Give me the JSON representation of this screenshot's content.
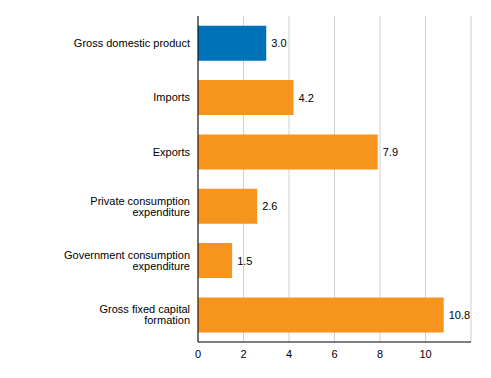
{
  "chart_data": {
    "type": "bar",
    "orientation": "horizontal",
    "categories": [
      "Gross domestic product",
      "Imports",
      "Exports",
      "Private consumption expenditure",
      "Government consumption expenditure",
      "Gross fixed capital formation"
    ],
    "values": [
      3.0,
      4.2,
      7.9,
      2.6,
      1.5,
      10.8
    ],
    "value_labels": [
      "3.0",
      "4.2",
      "7.9",
      "2.6",
      "1.5",
      "10.8"
    ],
    "colors": [
      "#0072b9",
      "#f7941d",
      "#f7941d",
      "#f7941d",
      "#f7941d",
      "#f7941d"
    ],
    "xlim": [
      0,
      12
    ],
    "xticks": [
      0,
      2,
      4,
      6,
      8,
      10
    ],
    "grid": true,
    "data_labels": true
  }
}
